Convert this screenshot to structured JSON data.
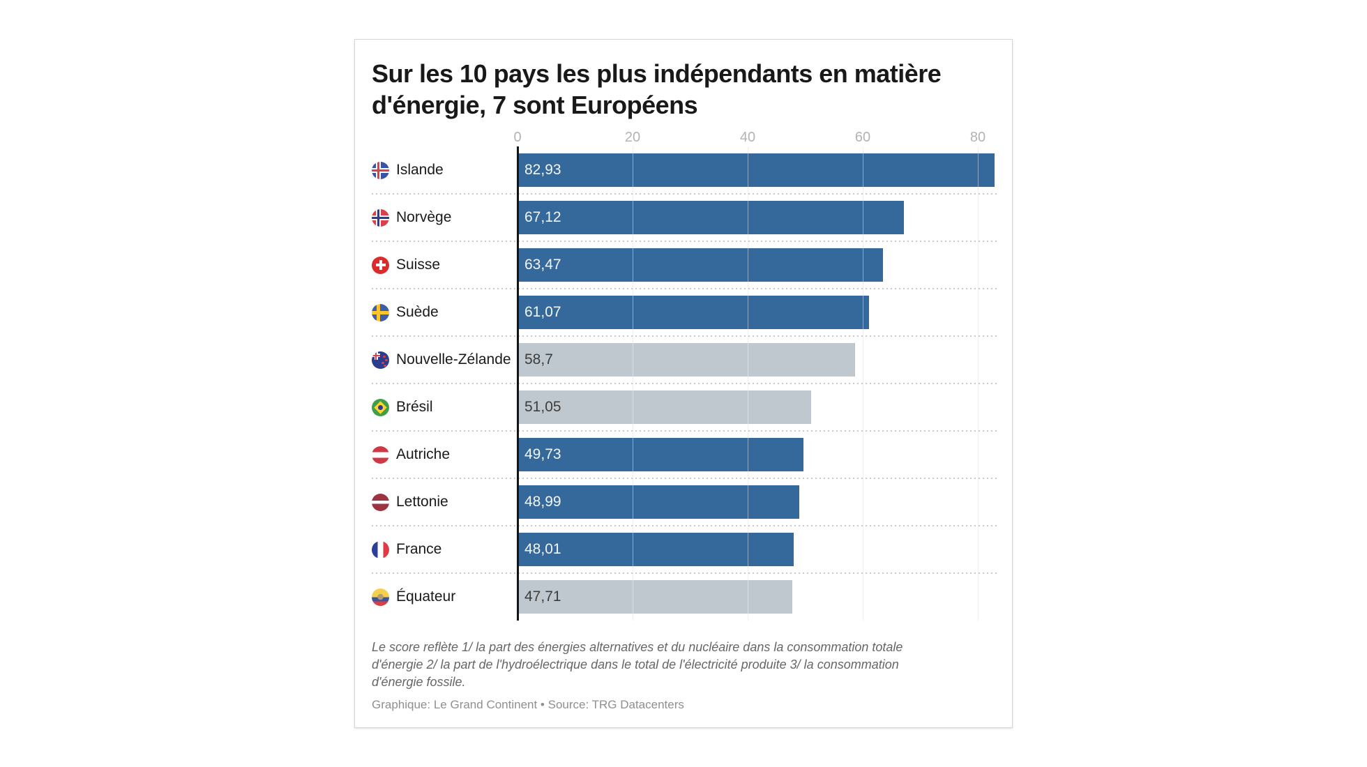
{
  "header": {
    "title": "Sur les 10 pays les plus indépendants en matière d'énergie, 7 sont Européens"
  },
  "chart_data": {
    "type": "bar",
    "orientation": "horizontal",
    "title": "Sur les 10 pays les plus indépendants en matière d'énergie, 7 sont Européens",
    "categories": [
      "Islande",
      "Norvège",
      "Suisse",
      "Suède",
      "Nouvelle-Zélande",
      "Brésil",
      "Autriche",
      "Lettonie",
      "France",
      "Équateur"
    ],
    "values": [
      82.93,
      67.12,
      63.47,
      61.07,
      58.7,
      51.05,
      49.73,
      48.99,
      48.01,
      47.71
    ],
    "value_labels": [
      "82,93",
      "67,12",
      "63,47",
      "61,07",
      "58,7",
      "51,05",
      "49,73",
      "48,99",
      "48,01",
      "47,71"
    ],
    "flags": [
      "iceland",
      "norway",
      "switzerland",
      "sweden",
      "new-zealand",
      "brazil",
      "austria",
      "latvia",
      "france",
      "ecuador"
    ],
    "is_european": [
      true,
      true,
      true,
      true,
      false,
      false,
      true,
      true,
      true,
      false
    ],
    "x_ticks": [
      0,
      20,
      40,
      60,
      80
    ],
    "xlim": [
      0,
      83.3
    ],
    "grid": true,
    "legend": "none",
    "colors": {
      "european_bar": "#36699B",
      "non_european_bar": "#C0C8CF",
      "label_on_european_bar": "#F2F6FA",
      "label_on_non_european_bar": "#3D3D3D",
      "axis_tick_text": "#B3B3B3",
      "zero_axis_line": "#131313"
    }
  },
  "footer": {
    "note": "Le score reflète 1/ la part des énergies alternatives et du nucléaire dans la consommation totale d'énergie 2/ la part de l'hydroélectrique dans le total de l'électricité produite 3/ la consommation d'énergie fossile.",
    "attribution": "Graphique: Le Grand Continent • Source: TRG Datacenters"
  }
}
